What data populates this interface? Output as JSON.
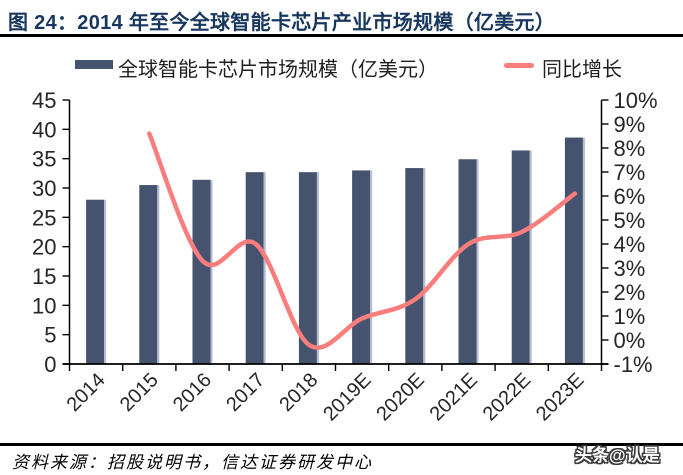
{
  "colors": {
    "title": "#17375E",
    "bar": "#46536E",
    "bar_highlight": "#B5BBCE",
    "line": "#FA7D7D",
    "axis": "#000000",
    "tick_label": "#262626",
    "rule": "#000000"
  },
  "legend": {
    "bar_label": "全球智能卡芯片市场规模（亿美元）",
    "line_label": "同比增长"
  },
  "footer": {
    "source": "资料来源：招股说明书，信达证券研发中心",
    "watermark": "头条@认是"
  },
  "chart_data": {
    "type": "bar+line",
    "title": "图 24：2014 年至今全球智能卡芯片产业市场规模（亿美元）",
    "categories": [
      "2014",
      "2015",
      "2016",
      "2017",
      "2018",
      "2019E",
      "2020E",
      "2021E",
      "2022E",
      "2023E"
    ],
    "series": [
      {
        "name": "全球智能卡芯片市场规模（亿美元）",
        "type": "bar",
        "axis": "left",
        "unit": "亿美元",
        "values": [
          28.0,
          30.5,
          31.4,
          32.7,
          32.7,
          33.0,
          33.4,
          34.9,
          36.4,
          38.6
        ]
      },
      {
        "name": "同比增长",
        "type": "line",
        "axis": "right",
        "unit": "%",
        "values": [
          null,
          8.6,
          3.3,
          4.0,
          -0.2,
          0.9,
          1.7,
          4.0,
          4.5,
          6.1
        ]
      }
    ],
    "left_axis": {
      "min": 0,
      "max": 45,
      "step": 5
    },
    "right_axis": {
      "min": -1,
      "max": 10,
      "step": 1,
      "suffix": "%"
    },
    "grid": false,
    "legend_position": "top"
  }
}
